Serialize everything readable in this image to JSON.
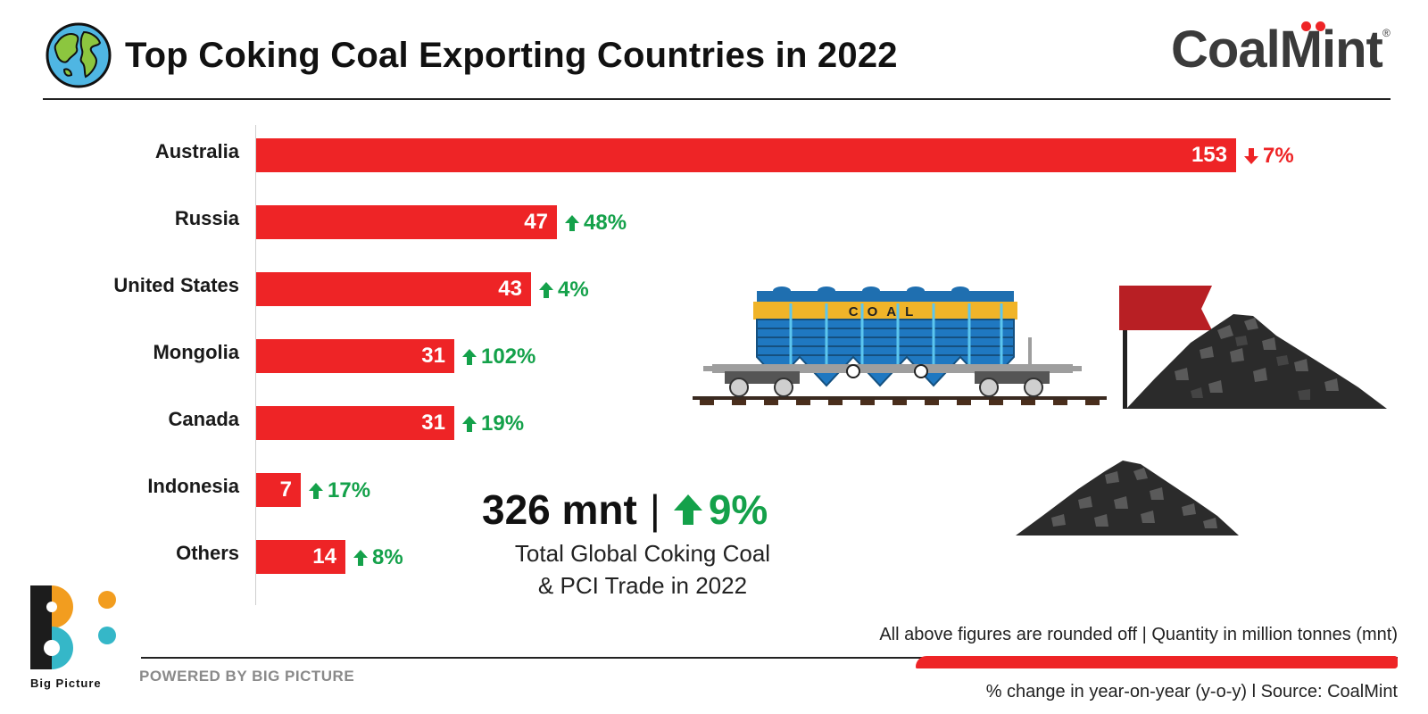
{
  "header": {
    "title": "Top Coking Coal Exporting Countries in 2022",
    "brand": "CoalMint",
    "brand_reg": "®"
  },
  "chart_data": {
    "type": "bar",
    "orientation": "horizontal",
    "title": "Top Coking Coal Exporting Countries in 2022",
    "categories": [
      "Australia",
      "Russia",
      "United States",
      "Mongolia",
      "Canada",
      "Indonesia",
      "Others"
    ],
    "values": [
      153,
      47,
      43,
      31,
      31,
      7,
      14
    ],
    "value_labels": [
      "153",
      "47",
      "43",
      "31",
      "31",
      "7",
      "14"
    ],
    "changes": [
      {
        "label": "7%",
        "direction": "down"
      },
      {
        "label": "48%",
        "direction": "up"
      },
      {
        "label": "4%",
        "direction": "up"
      },
      {
        "label": "102%",
        "direction": "up"
      },
      {
        "label": "19%",
        "direction": "up"
      },
      {
        "label": "17%",
        "direction": "up"
      },
      {
        "label": "8%",
        "direction": "up"
      }
    ],
    "xlim": [
      0,
      155
    ],
    "grid": false,
    "bar_color": "#ee2426",
    "up_color": "#14a14a",
    "down_color": "#ee2426"
  },
  "summary": {
    "total": "326 mnt",
    "separator": "|",
    "change": "9%",
    "caption_line1": "Total Global Coking Coal",
    "caption_line2": "& PCI Trade in 2022"
  },
  "illustration": {
    "wagon_text": "COAL"
  },
  "footer": {
    "note_rounding": "All above figures are rounded off | Quantity in million tonnes (mnt)",
    "note_source": "% change in year-on-year (y-o-y)  l  Source: CoalMint",
    "powered_by": "POWERED BY BIG PICTURE",
    "bp_name": "Big Picture"
  },
  "icons": {
    "globe": "globe-icon",
    "arrow_up": "arrow-up-icon",
    "arrow_down": "arrow-down-icon"
  }
}
